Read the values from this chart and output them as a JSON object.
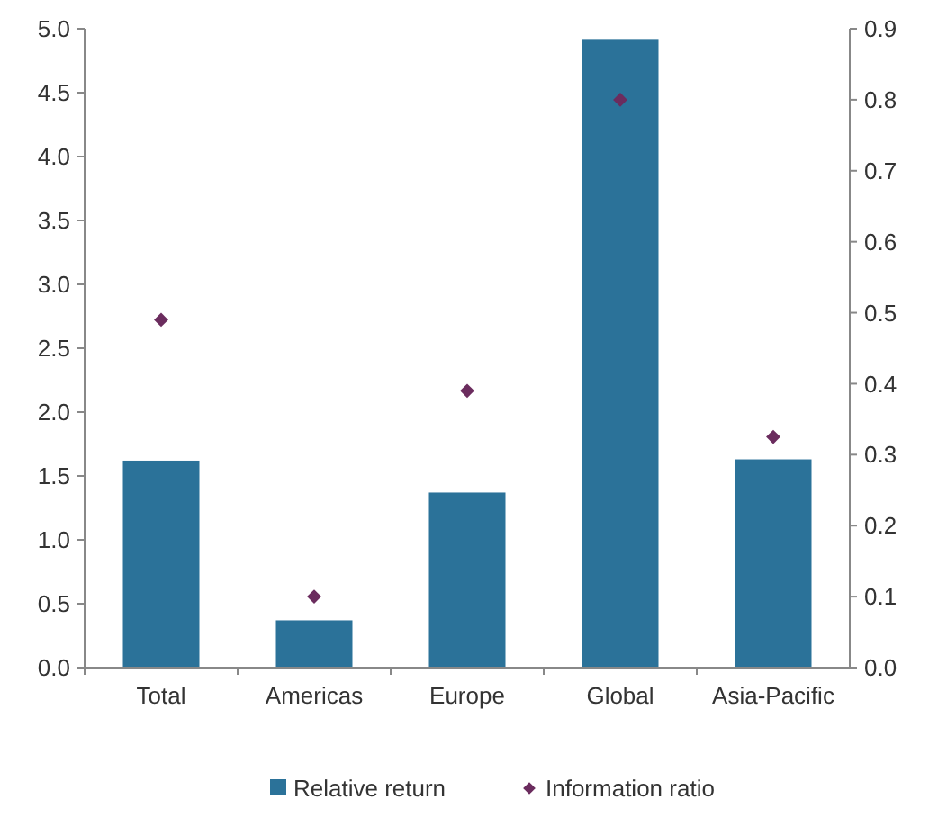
{
  "chart_data": {
    "type": "bar",
    "categories": [
      "Total",
      "Americas",
      "Europe",
      "Global",
      "Asia-Pacific"
    ],
    "series": [
      {
        "name": "Relative return",
        "color": "#2b7299",
        "values": [
          1.62,
          0.37,
          1.37,
          4.92,
          1.63
        ]
      },
      {
        "name": "Information ratio",
        "type": "scatter",
        "axis": "y2",
        "color": "#6b2c5e",
        "marker": "diamond",
        "values": [
          0.49,
          0.1,
          0.39,
          0.8,
          0.325
        ]
      }
    ],
    "ylim": [
      0,
      5
    ],
    "yticks": [
      {
        "value": 0,
        "label": "0.0"
      },
      {
        "value": 0.5,
        "label": "0.5"
      },
      {
        "value": 1,
        "label": "1.0"
      },
      {
        "value": 1.5,
        "label": "1.5"
      },
      {
        "value": 2,
        "label": "2.0"
      },
      {
        "value": 2.5,
        "label": "2.5"
      },
      {
        "value": 3,
        "label": "3.0"
      },
      {
        "value": 3.5,
        "label": "3.5"
      },
      {
        "value": 4,
        "label": "4.0"
      },
      {
        "value": 4.5,
        "label": "4.5"
      },
      {
        "value": 5,
        "label": "5.0"
      }
    ],
    "y2lim": [
      0,
      0.9
    ],
    "y2ticks": [
      {
        "value": 0,
        "label": "0.0"
      },
      0.1,
      0.2,
      0.3,
      0.4,
      0.5,
      0.6,
      0.7,
      0.8,
      0.9
    ],
    "legend": "bottom",
    "grid": false
  }
}
